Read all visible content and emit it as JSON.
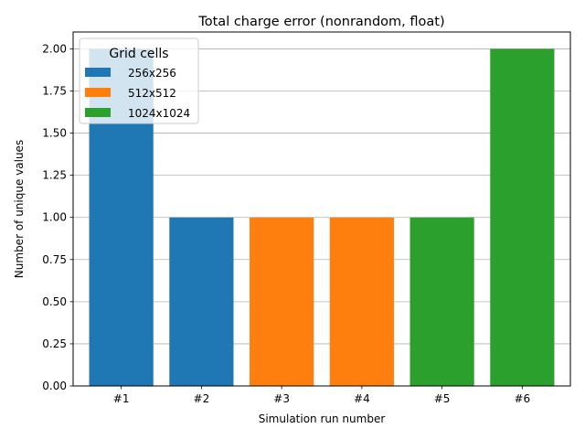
{
  "chart_data": {
    "type": "bar",
    "title": "Total charge error (nonrandom, float)",
    "xlabel": "Simulation run number",
    "ylabel": "Number of unique values",
    "categories": [
      "#1",
      "#2",
      "#3",
      "#4",
      "#5",
      "#6"
    ],
    "values": [
      2,
      1,
      1,
      1,
      1,
      2
    ],
    "bar_series": [
      "256x256",
      "256x256",
      "512x512",
      "512x512",
      "1024x1024",
      "1024x1024"
    ],
    "series": [
      {
        "name": "256x256",
        "color": "#1f77b4"
      },
      {
        "name": "512x512",
        "color": "#ff7f0e"
      },
      {
        "name": "1024x1024",
        "color": "#2ca02c"
      }
    ],
    "ylim": [
      0,
      2.1
    ],
    "yticks": [
      "0.00",
      "0.25",
      "0.50",
      "0.75",
      "1.00",
      "1.25",
      "1.50",
      "1.75",
      "2.00"
    ],
    "grid": "y",
    "legend": {
      "title": "Grid cells",
      "placement": "upper-left"
    }
  }
}
